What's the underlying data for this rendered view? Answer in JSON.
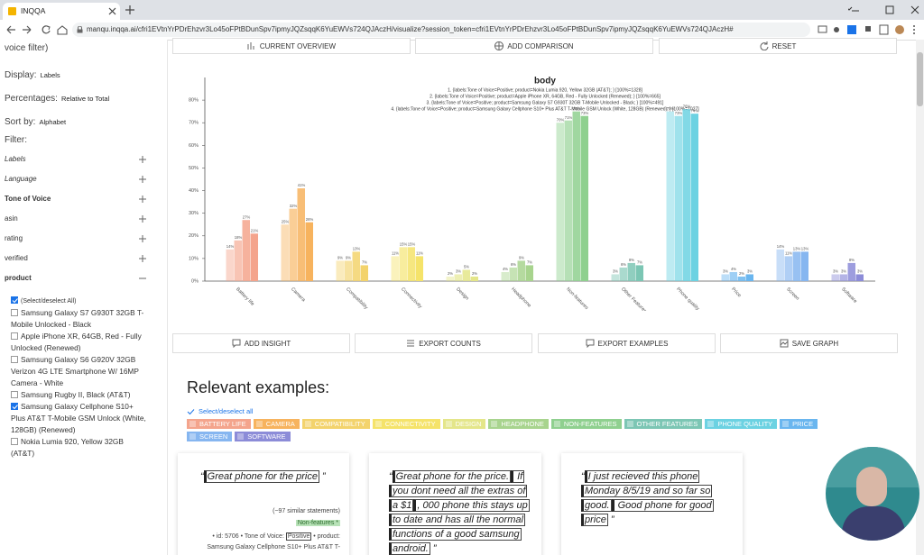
{
  "browser": {
    "tab_title": "INQQA",
    "url": "manqu.inqqa.ai/cfri1EVtnYrPDrEhzvr3Lo45oFPtBDunSpv7ipmyJQZsqqK6YuEWVs724QJAczH/visualize?session_token=cfri1EVtnYrPDrEhzvr3Lo45oFPtBDunSpv7ipmyJQZsqqK6YuEWVs724QJAczH#"
  },
  "sidebar": {
    "top_text": "voice filter)",
    "settings": [
      {
        "label": "Display:",
        "value": "Labels"
      },
      {
        "label": "Percentages:",
        "value": "Relative to Total"
      },
      {
        "label": "Sort by:",
        "value": "Alphabet"
      }
    ],
    "filter_heading": "Filter:",
    "filters": [
      {
        "label": "Labels",
        "style": "italic",
        "expanded": false
      },
      {
        "label": "Language",
        "style": "italic",
        "expanded": false
      },
      {
        "label": "Tone of Voice",
        "style": "bold",
        "expanded": false
      },
      {
        "label": "asin",
        "style": "normal",
        "expanded": false
      },
      {
        "label": "rating",
        "style": "normal",
        "expanded": false
      },
      {
        "label": "verified",
        "style": "normal",
        "expanded": false
      },
      {
        "label": "product",
        "style": "bold",
        "expanded": true
      }
    ],
    "options": [
      {
        "label": "(Select/deselect All)",
        "checked": true
      },
      {
        "label": "Samsung Galaxy S7 G930T 32GB T-Mobile Unlocked - Black",
        "checked": false
      },
      {
        "label": "Apple iPhone XR, 64GB, Red - Fully Unlocked (Renewed)",
        "checked": false
      },
      {
        "label": "Samsung Galaxy S6 G920V 32GB Verizon 4G LTE Smartphone W/ 16MP Camera - White",
        "checked": false
      },
      {
        "label": "Samsung Rugby II, Black (AT&T)",
        "checked": false
      },
      {
        "label": "Samsung Galaxy Cellphone S10+ Plus AT&T T-Mobile GSM Unlock (White, 128GB) (Renewed)",
        "checked": true
      },
      {
        "label": "Nokia Lumia 920, Yellow 32GB (AT&T)",
        "checked": false
      }
    ]
  },
  "toolbar": [
    "CURRENT OVERVIEW",
    "ADD COMPARISON",
    "RESET"
  ],
  "chart_data": {
    "type": "bar",
    "title": "body",
    "categories": [
      "Battery life",
      "Camera",
      "Compatibility",
      "Connectivity",
      "Design",
      "Headphone",
      "Non-features",
      "Other Features",
      "Phone quality",
      "Price",
      "Screen",
      "Software"
    ],
    "category_colors": [
      "#f4a48c",
      "#f7b35e",
      "#f3d36c",
      "#f5e36a",
      "#e4e68a",
      "#a8d48e",
      "#8fd08f",
      "#7cc6b4",
      "#6cd2e2",
      "#6ab6ef",
      "#86b6f0",
      "#8c8cd8"
    ],
    "series": [
      {
        "name": "1. {labels:Tone of Voice=Positive; product=Nokia Lumia 920, Yellow 32GB (AT&T); } [100%=1328]",
        "opacity": 0.45,
        "values": [
          14,
          25,
          9,
          11,
          2,
          4,
          70,
          3,
          75,
          3,
          14,
          3
        ],
        "value_labels": [
          "14%",
          "25%",
          "9%",
          "11%",
          "2%",
          "4%",
          "70%",
          "3%",
          "75%",
          "3%",
          "14%",
          "3%"
        ]
      },
      {
        "name": "2. {labels:Tone of Voice=Positive; product=Apple iPhone XR, 64GB, Red - Fully Unlocked (Renewed); } [100%=665]",
        "opacity": 0.65,
        "values": [
          18,
          32,
          9,
          15,
          3,
          6,
          71,
          6,
          73,
          4,
          11,
          3
        ],
        "value_labels": [
          "18%",
          "32%",
          "9%",
          "15%",
          "3%",
          "6%",
          "71%",
          "6%",
          "73%",
          "4%",
          "11%",
          "3%"
        ]
      },
      {
        "name": "3. {labels:Tone of Voice=Positive; product=Samsung Galaxy S7 G930T 32GB T-Mobile Unlocked - Black; } [100%=491]",
        "opacity": 0.85,
        "values": [
          27,
          41,
          13,
          15,
          5,
          9,
          75,
          8,
          76,
          2,
          13,
          8
        ],
        "value_labels": [
          "27%",
          "41%",
          "13%",
          "15%",
          "5%",
          "9%",
          "75%",
          "8%",
          "76%",
          "2%",
          "13%",
          "8%"
        ]
      },
      {
        "name": "4. {labels:Tone of Voice=Positive; product=Samsung Galaxy Cellphone S10+ Plus AT&T T-Mobile GSM Unlock (White, 128GB) (Renewed); } [100%=1027]",
        "opacity": 1,
        "values": [
          21,
          26,
          7,
          11,
          2,
          7,
          73,
          7,
          74,
          3,
          13,
          3
        ],
        "value_labels": [
          "21%",
          "26%",
          "7%",
          "11%",
          "2%",
          "7%",
          "73%",
          "7%",
          "74%",
          "3%",
          "13%",
          "3%"
        ]
      }
    ],
    "ylim": [
      0,
      90
    ],
    "yticks": [
      {
        "value": 0,
        "label": "0%"
      },
      {
        "value": 10,
        "label": "10%"
      },
      {
        "value": 20,
        "label": "20%"
      },
      {
        "value": 30,
        "label": "30%"
      },
      {
        "value": 40,
        "label": "40%"
      },
      {
        "value": 50,
        "label": "50%"
      },
      {
        "value": 60,
        "label": "60%"
      },
      {
        "value": 70,
        "label": "70%"
      },
      {
        "value": 80,
        "label": "80%"
      }
    ],
    "grid": false
  },
  "actions": [
    "ADD INSIGHT",
    "EXPORT COUNTS",
    "EXPORT EXAMPLES",
    "SAVE GRAPH"
  ],
  "examples": {
    "heading": "Relevant examples:",
    "select_all": "Select/deselect all",
    "tags": [
      {
        "label": "BATTERY LIFE",
        "color": "#f4a48c"
      },
      {
        "label": "CAMERA",
        "color": "#f7b35e"
      },
      {
        "label": "COMPATIBILITY",
        "color": "#f3d36c"
      },
      {
        "label": "CONNECTIVITY",
        "color": "#f5e36a"
      },
      {
        "label": "DESIGN",
        "color": "#e4e68a"
      },
      {
        "label": "HEADPHONE",
        "color": "#a8d48e"
      },
      {
        "label": "NON-FEATURES",
        "color": "#8fd08f"
      },
      {
        "label": "OTHER FEATURES",
        "color": "#7cc6b4"
      },
      {
        "label": "PHONE QUALITY",
        "color": "#6cd2e2"
      },
      {
        "label": "PRICE",
        "color": "#6ab6ef"
      },
      {
        "label": "SCREEN",
        "color": "#86b6f0"
      },
      {
        "label": "SOFTWARE",
        "color": "#8c8cd8"
      }
    ],
    "cards": [
      {
        "segments": [
          {
            "text": "“",
            "highlight": false
          },
          {
            "text": "Great phone for the price",
            "highlight": true
          },
          {
            "text": " ”",
            "highlight": false
          }
        ],
        "similar": "(~97 similar statements)",
        "label": "Non-features *",
        "meta": [
          {
            "text": "• id: 5706 • Tone of Voice: ",
            "highlight": false
          },
          {
            "text": "Positive",
            "highlight": true
          },
          {
            "text": " • product: Samsung Galaxy Cellphone S10+ Plus AT&T T-",
            "highlight": false
          }
        ]
      },
      {
        "segments": [
          {
            "text": "“",
            "highlight": false
          },
          {
            "text": "Great phone for the price.",
            "highlight": true
          },
          {
            "text": " If you dont need all the extras of a $1",
            "highlight": true
          },
          {
            "text": ", 000 phone this stays up to date and has all the normal functions of a good samsung android.",
            "highlight": true
          },
          {
            "text": " ”",
            "highlight": false
          }
        ]
      },
      {
        "segments": [
          {
            "text": "“",
            "highlight": false
          },
          {
            "text": "I just recieved this phone Monday 8/5/19 and so far so good.",
            "highlight": true
          },
          {
            "text": " Good phone for good price",
            "highlight": true
          },
          {
            "text": " ”",
            "highlight": false
          }
        ]
      }
    ]
  }
}
